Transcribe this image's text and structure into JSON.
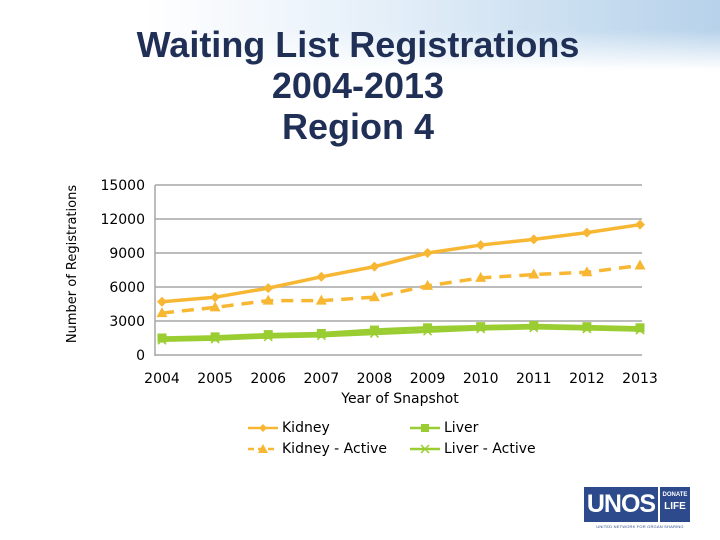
{
  "slide": {
    "title_lines": [
      "Waiting List Registrations",
      "2004-2013",
      "Region 4"
    ]
  },
  "chart_data": {
    "type": "line",
    "title": "Waiting List Registrations 2004-2013 Region 4",
    "xlabel": "Year of Snapshot",
    "ylabel": "Number of Registrations",
    "categories": [
      "2004",
      "2005",
      "2006",
      "2007",
      "2008",
      "2009",
      "2010",
      "2011",
      "2012",
      "2013"
    ],
    "ylim": [
      0,
      15000
    ],
    "yticks": [
      "0",
      "3000",
      "6000",
      "9000",
      "12000",
      "15000"
    ],
    "grid": true,
    "legend_position": "bottom",
    "series": [
      {
        "name": "Kidney",
        "color": "#f7b733",
        "dash": "solid",
        "marker": "diamond",
        "values": [
          4700,
          5100,
          5900,
          6900,
          7800,
          9000,
          9700,
          10200,
          10800,
          11500
        ]
      },
      {
        "name": "Kidney - Active",
        "color": "#f7b733",
        "dash": "dashed",
        "marker": "triangle",
        "values": [
          3700,
          4200,
          4800,
          4800,
          5100,
          6100,
          6800,
          7100,
          7300,
          7900
        ]
      },
      {
        "name": "Liver",
        "color": "#9acd32",
        "dash": "solid",
        "marker": "square",
        "values": [
          1500,
          1600,
          1800,
          1900,
          2200,
          2400,
          2500,
          2600,
          2500,
          2400
        ]
      },
      {
        "name": "Liver - Active",
        "color": "#9acd32",
        "dash": "solid",
        "marker": "x",
        "values": [
          1300,
          1400,
          1600,
          1700,
          1900,
          2100,
          2300,
          2400,
          2300,
          2200
        ]
      }
    ]
  },
  "logo": {
    "brand": "UNOS",
    "donate_top": "DONATE",
    "donate_bottom": "LIFE",
    "tagline": "UNITED NETWORK FOR ORGAN SHARING"
  }
}
